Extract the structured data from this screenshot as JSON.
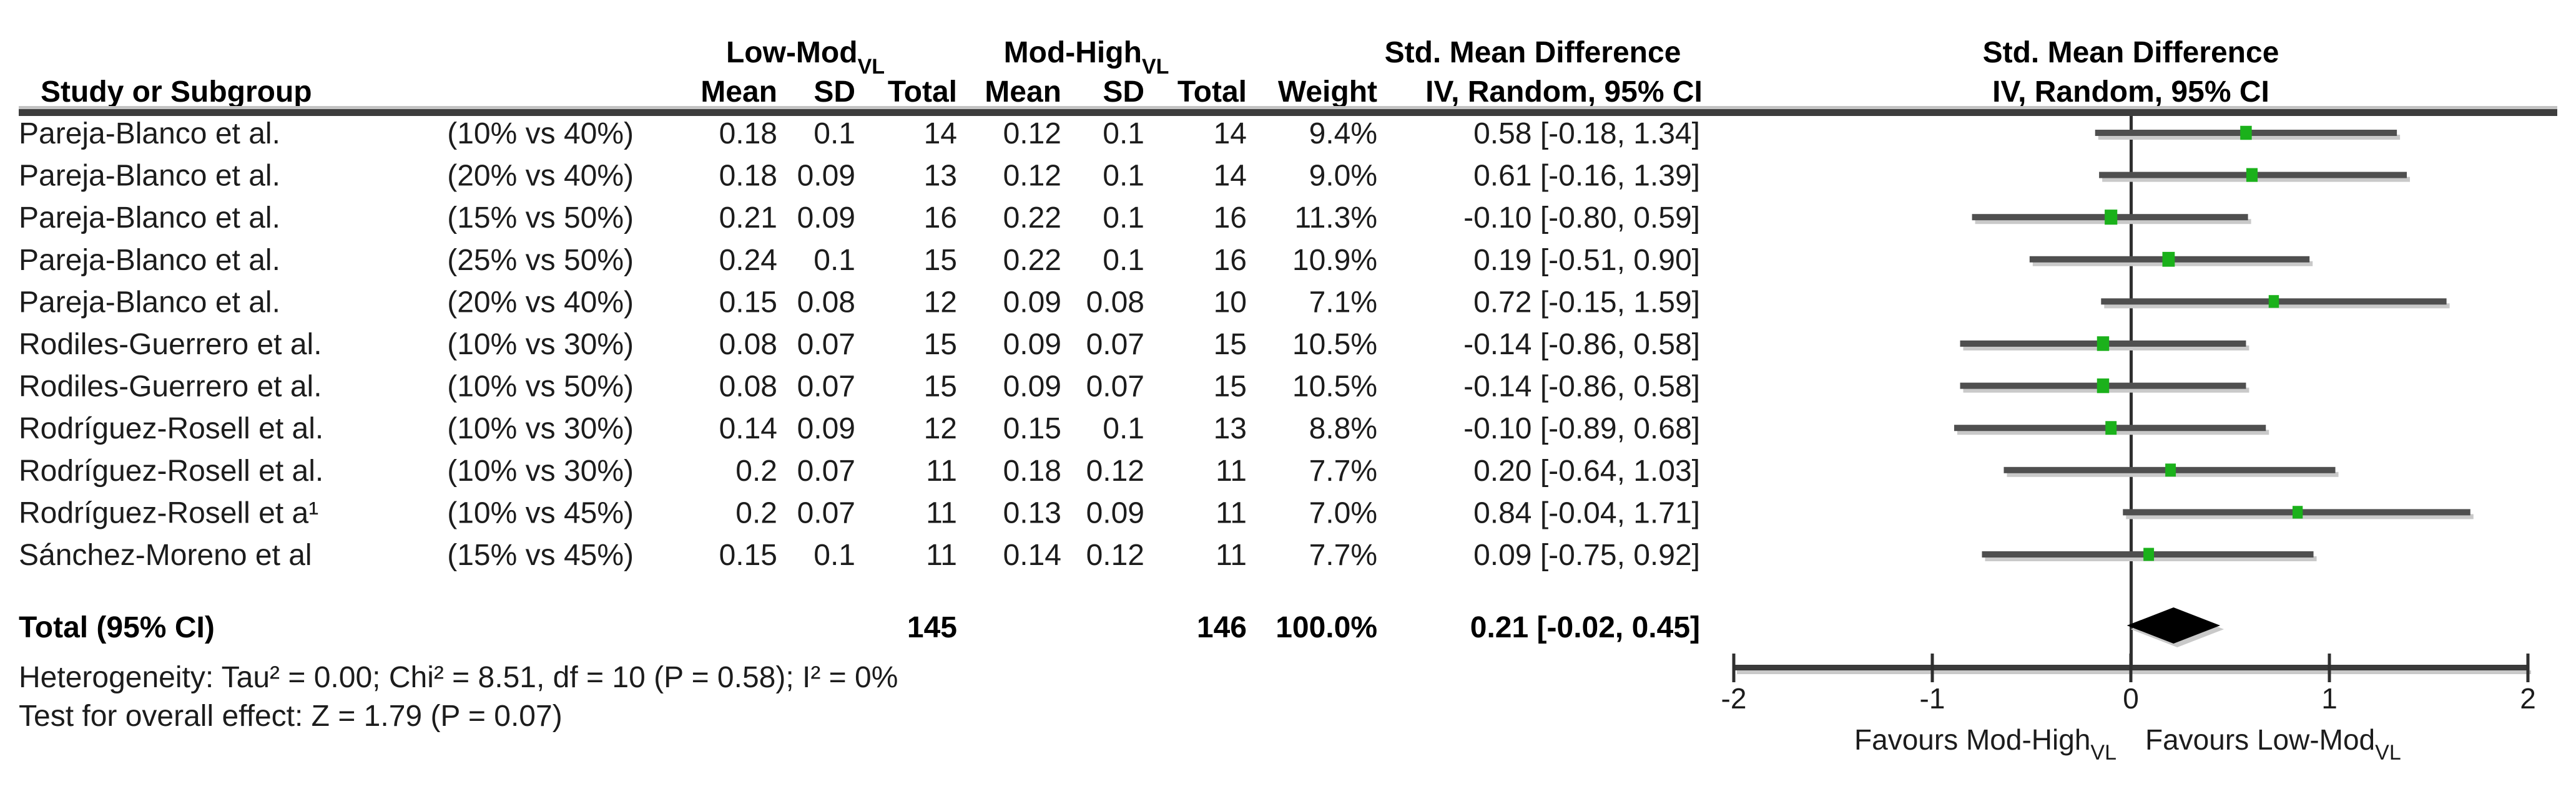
{
  "chart_data": {
    "type": "scatter",
    "chart_kind": "forest-plot-meta-analysis",
    "columns": {
      "study": "Study or Subgroup",
      "mean": "Mean",
      "sd": "SD",
      "total": "Total",
      "weight": "Weight"
    },
    "group_headers": [
      {
        "text": "Low-Mod",
        "subscript": "VL"
      },
      {
        "text": "Mod-High",
        "subscript": "VL"
      }
    ],
    "effect_column": {
      "title": "Std. Mean Difference",
      "subtitle": "IV, Random, 95% CI"
    },
    "plot_column": {
      "title": "Std. Mean Difference",
      "subtitle": "IV, Random, 95% CI"
    },
    "studies": [
      {
        "study": "Pareja-Blanco et al.",
        "comparison": "(10% vs 40%)",
        "g1_mean": "0.18",
        "g1_sd": "0.1",
        "g1_total": "14",
        "g2_mean": "0.12",
        "g2_sd": "0.1",
        "g2_total": "14",
        "weight": "9.4%",
        "ci_text": "0.58 [-0.18, 1.34]",
        "estimate": 0.58,
        "ci_low": -0.18,
        "ci_high": 1.34,
        "weight_value": 9.4
      },
      {
        "study": "Pareja-Blanco et al.",
        "comparison": "(20% vs 40%)",
        "g1_mean": "0.18",
        "g1_sd": "0.09",
        "g1_total": "13",
        "g2_mean": "0.12",
        "g2_sd": "0.1",
        "g2_total": "14",
        "weight": "9.0%",
        "ci_text": "0.61 [-0.16, 1.39]",
        "estimate": 0.61,
        "ci_low": -0.16,
        "ci_high": 1.39,
        "weight_value": 9.0
      },
      {
        "study": "Pareja-Blanco et al.",
        "comparison": "(15% vs 50%)",
        "g1_mean": "0.21",
        "g1_sd": "0.09",
        "g1_total": "16",
        "g2_mean": "0.22",
        "g2_sd": "0.1",
        "g2_total": "16",
        "weight": "11.3%",
        "ci_text": "-0.10 [-0.80, 0.59]",
        "estimate": -0.1,
        "ci_low": -0.8,
        "ci_high": 0.59,
        "weight_value": 11.3
      },
      {
        "study": "Pareja-Blanco et al.",
        "comparison": "(25% vs 50%)",
        "g1_mean": "0.24",
        "g1_sd": "0.1",
        "g1_total": "15",
        "g2_mean": "0.22",
        "g2_sd": "0.1",
        "g2_total": "16",
        "weight": "10.9%",
        "ci_text": "0.19 [-0.51, 0.90]",
        "estimate": 0.19,
        "ci_low": -0.51,
        "ci_high": 0.9,
        "weight_value": 10.9
      },
      {
        "study": "Pareja-Blanco et al.",
        "comparison": "(20% vs 40%)",
        "g1_mean": "0.15",
        "g1_sd": "0.08",
        "g1_total": "12",
        "g2_mean": "0.09",
        "g2_sd": "0.08",
        "g2_total": "10",
        "weight": "7.1%",
        "ci_text": "0.72 [-0.15, 1.59]",
        "estimate": 0.72,
        "ci_low": -0.15,
        "ci_high": 1.59,
        "weight_value": 7.1
      },
      {
        "study": "Rodiles-Guerrero et al.",
        "comparison": "(10% vs 30%)",
        "g1_mean": "0.08",
        "g1_sd": "0.07",
        "g1_total": "15",
        "g2_mean": "0.09",
        "g2_sd": "0.07",
        "g2_total": "15",
        "weight": "10.5%",
        "ci_text": "-0.14 [-0.86, 0.58]",
        "estimate": -0.14,
        "ci_low": -0.86,
        "ci_high": 0.58,
        "weight_value": 10.5
      },
      {
        "study": "Rodiles-Guerrero et al.",
        "comparison": "(10% vs 50%)",
        "g1_mean": "0.08",
        "g1_sd": "0.07",
        "g1_total": "15",
        "g2_mean": "0.09",
        "g2_sd": "0.07",
        "g2_total": "15",
        "weight": "10.5%",
        "ci_text": "-0.14 [-0.86, 0.58]",
        "estimate": -0.14,
        "ci_low": -0.86,
        "ci_high": 0.58,
        "weight_value": 10.5
      },
      {
        "study": "Rodríguez-Rosell et al.",
        "comparison": "(10% vs 30%)",
        "g1_mean": "0.14",
        "g1_sd": "0.09",
        "g1_total": "12",
        "g2_mean": "0.15",
        "g2_sd": "0.1",
        "g2_total": "13",
        "weight": "8.8%",
        "ci_text": "-0.10 [-0.89, 0.68]",
        "estimate": -0.1,
        "ci_low": -0.89,
        "ci_high": 0.68,
        "weight_value": 8.8
      },
      {
        "study": "Rodríguez-Rosell et al.",
        "comparison": "(10% vs 30%)",
        "g1_mean": "0.2",
        "g1_sd": "0.07",
        "g1_total": "11",
        "g2_mean": "0.18",
        "g2_sd": "0.12",
        "g2_total": "11",
        "weight": "7.7%",
        "ci_text": "0.20 [-0.64, 1.03]",
        "estimate": 0.2,
        "ci_low": -0.64,
        "ci_high": 1.03,
        "weight_value": 7.7
      },
      {
        "study": "Rodríguez-Rosell et a¹",
        "comparison": "(10% vs 45%)",
        "g1_mean": "0.2",
        "g1_sd": "0.07",
        "g1_total": "11",
        "g2_mean": "0.13",
        "g2_sd": "0.09",
        "g2_total": "11",
        "weight": "7.0%",
        "ci_text": "0.84 [-0.04, 1.71]",
        "estimate": 0.84,
        "ci_low": -0.04,
        "ci_high": 1.71,
        "weight_value": 7.0
      },
      {
        "study": "Sánchez-Moreno et al",
        "comparison": "(15% vs 45%)",
        "g1_mean": "0.15",
        "g1_sd": "0.1",
        "g1_total": "11",
        "g2_mean": "0.14",
        "g2_sd": "0.12",
        "g2_total": "11",
        "weight": "7.7%",
        "ci_text": "0.09 [-0.75, 0.92]",
        "estimate": 0.09,
        "ci_low": -0.75,
        "ci_high": 0.92,
        "weight_value": 7.7
      }
    ],
    "total": {
      "label": "Total (95% CI)",
      "group1_total": "145",
      "group2_total": "146",
      "weight": "100.0%",
      "ci_text": "0.21 [-0.02, 0.45]",
      "estimate": 0.21,
      "ci_low": -0.02,
      "ci_high": 0.45
    },
    "footnotes": {
      "heterogeneity": "Heterogeneity: Tau² = 0.00; Chi² = 8.51, df = 10 (P = 0.58); I² = 0%",
      "overall_effect": "Test for overall effect: Z = 1.79 (P = 0.07)"
    },
    "xlim": [
      -2,
      2
    ],
    "x_ticks": [
      "-2",
      "-1",
      "0",
      "1",
      "2"
    ],
    "axis_labels": {
      "left": {
        "text": "Favours Mod-High",
        "subscript": "VL"
      },
      "right": {
        "text": "Favours Low-Mod",
        "subscript": "VL"
      }
    },
    "colors": {
      "marker_green": "#1bb11b",
      "ci_line": "#4f4f4f",
      "shadow": "#c9c9c9",
      "diamond": "#000000",
      "axis": "#3a3a3a",
      "zero_line": "#2f2f2f",
      "separator_dark": "#3d3d3d",
      "separator_light": "#c2c2c2"
    }
  }
}
